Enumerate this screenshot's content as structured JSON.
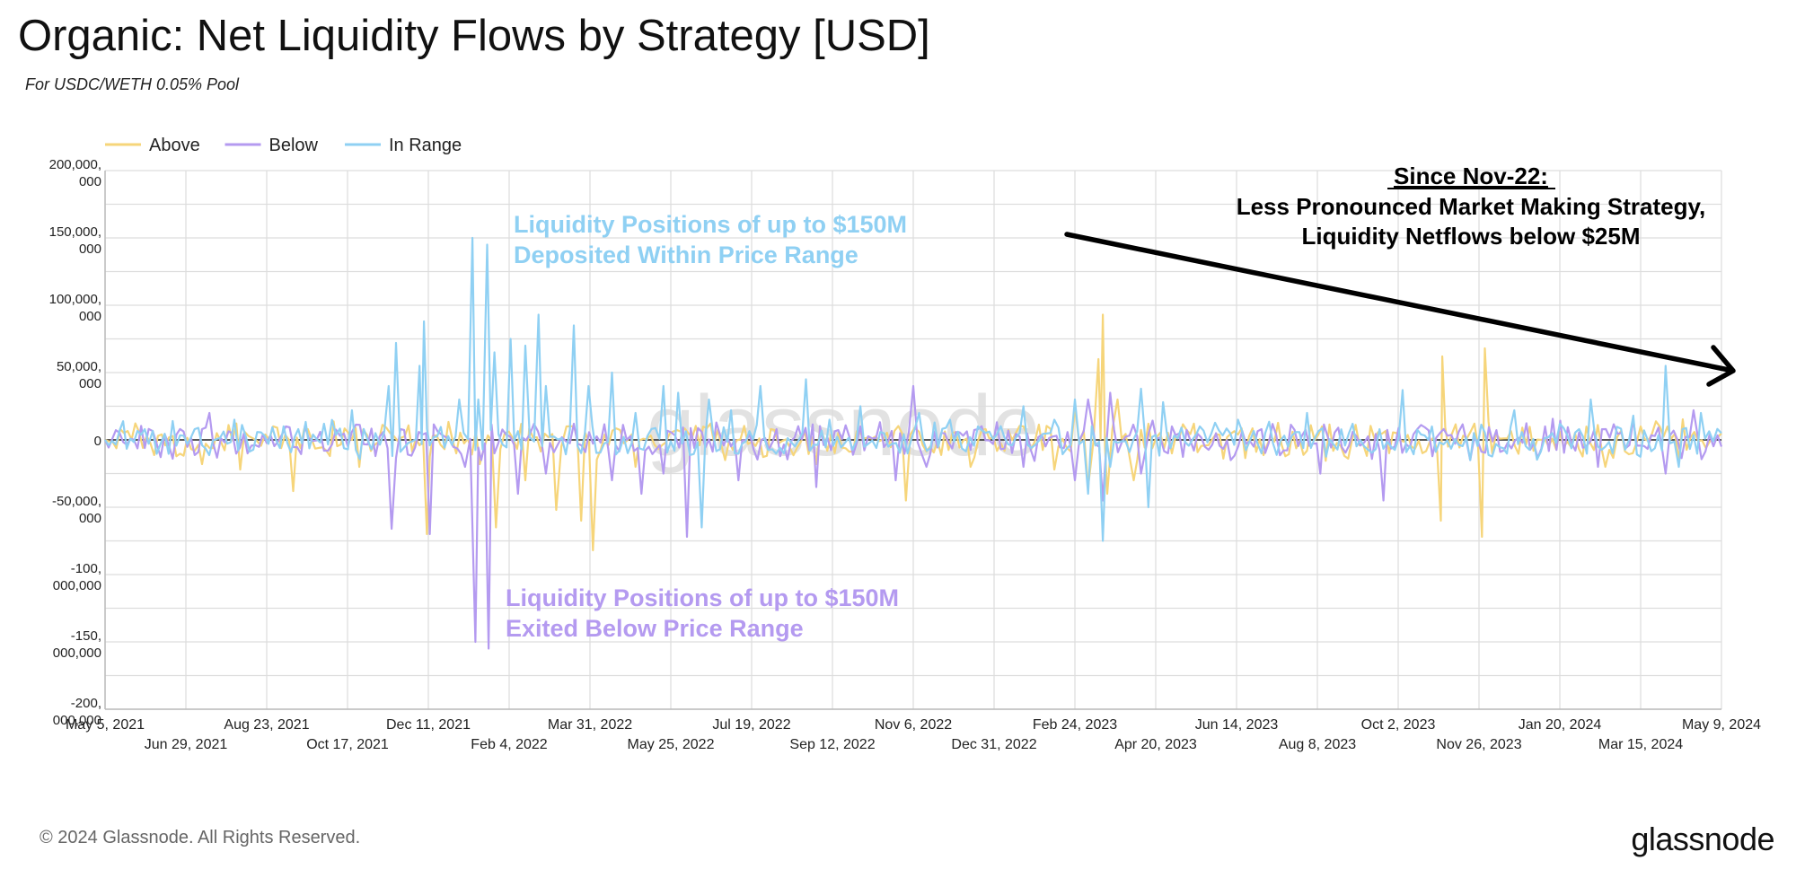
{
  "title": "Organic: Net Liquidity Flows by Strategy [USD]",
  "subtitle": "For USDC/WETH 0.05% Pool",
  "footer": "© 2024 Glassnode. All Rights Reserved.",
  "brand": "glassnode",
  "watermark": "glassnode",
  "colors": {
    "above": "#f6d57a",
    "below": "#b49af0",
    "in_range": "#8fd0f3",
    "arrow": "#000000"
  },
  "annotations": {
    "in_range_note": [
      "Liquidity Positions of up to $150M",
      "Deposited Within Price Range"
    ],
    "below_note": [
      "Liquidity Positions of up to $150M",
      "Exited Below Price Range"
    ],
    "since_heading": "Since Nov-22:",
    "since_lines": [
      "Less Pronounced Market Making Strategy,",
      "Liquidity Netflows below $25M"
    ]
  },
  "chart_data": {
    "type": "line",
    "title": "Organic: Net Liquidity Flows by Strategy [USD]",
    "subtitle": "For USDC/WETH 0.05% Pool",
    "legend_position": "top-left",
    "grid": true,
    "ylim": [
      -200000000,
      200000000
    ],
    "yticks": [
      {
        "value": 200000000,
        "label": [
          "200,000,",
          "000"
        ]
      },
      {
        "value": 150000000,
        "label": [
          "150,000,",
          "000"
        ]
      },
      {
        "value": 100000000,
        "label": [
          "100,000,",
          "000"
        ]
      },
      {
        "value": 50000000,
        "label": [
          "50,000,",
          "000"
        ]
      },
      {
        "value": 0,
        "label": [
          "0"
        ]
      },
      {
        "value": -50000000,
        "label": [
          "-50,000,",
          "000"
        ]
      },
      {
        "value": -100000000,
        "label": [
          "-100,",
          "000,000"
        ]
      },
      {
        "value": -150000000,
        "label": [
          "-150,",
          "000,000"
        ]
      },
      {
        "value": -200000000,
        "label": [
          "-200,",
          "000,000"
        ]
      }
    ],
    "xlim": [
      "2021-05-05",
      "2024-05-09"
    ],
    "xticks": [
      {
        "date": "2021-05-05",
        "label": "May 5, 2021",
        "row": 0
      },
      {
        "date": "2021-06-29",
        "label": "Jun 29, 2021",
        "row": 1
      },
      {
        "date": "2021-08-23",
        "label": "Aug 23, 2021",
        "row": 0
      },
      {
        "date": "2021-10-17",
        "label": "Oct 17, 2021",
        "row": 1
      },
      {
        "date": "2021-12-11",
        "label": "Dec 11, 2021",
        "row": 0
      },
      {
        "date": "2022-02-04",
        "label": "Feb 4, 2022",
        "row": 1
      },
      {
        "date": "2022-03-31",
        "label": "Mar 31, 2022",
        "row": 0
      },
      {
        "date": "2022-05-25",
        "label": "May 25, 2022",
        "row": 1
      },
      {
        "date": "2022-07-19",
        "label": "Jul 19, 2022",
        "row": 0
      },
      {
        "date": "2022-09-12",
        "label": "Sep 12, 2022",
        "row": 1
      },
      {
        "date": "2022-11-06",
        "label": "Nov 6, 2022",
        "row": 0
      },
      {
        "date": "2022-12-31",
        "label": "Dec 31, 2022",
        "row": 1
      },
      {
        "date": "2023-02-24",
        "label": "Feb 24, 2023",
        "row": 0
      },
      {
        "date": "2023-04-20",
        "label": "Apr 20, 2023",
        "row": 1
      },
      {
        "date": "2023-06-14",
        "label": "Jun 14, 2023",
        "row": 0
      },
      {
        "date": "2023-08-08",
        "label": "Aug 8, 2023",
        "row": 1
      },
      {
        "date": "2023-10-02",
        "label": "Oct 2, 2023",
        "row": 0
      },
      {
        "date": "2023-11-26",
        "label": "Nov 26, 2023",
        "row": 1
      },
      {
        "date": "2024-01-20",
        "label": "Jan 20, 2024",
        "row": 0
      },
      {
        "date": "2024-03-15",
        "label": "Mar 15, 2024",
        "row": 1
      },
      {
        "date": "2024-05-09",
        "label": "May 9, 2024",
        "row": 0
      }
    ],
    "series": [
      {
        "name": "Above",
        "color": "#f6d57a",
        "points": [
          [
            "2021-05-05",
            0
          ],
          [
            "2021-06-10",
            3000000
          ],
          [
            "2021-07-10",
            -18000000
          ],
          [
            "2021-07-20",
            5000000
          ],
          [
            "2021-08-05",
            -22000000
          ],
          [
            "2021-08-22",
            4000000
          ],
          [
            "2021-09-10",
            -38000000
          ],
          [
            "2021-09-20",
            8000000
          ],
          [
            "2021-10-05",
            -12000000
          ],
          [
            "2021-10-25",
            -20000000
          ],
          [
            "2021-11-15",
            5000000
          ],
          [
            "2021-12-05",
            -4000000
          ],
          [
            "2021-12-10",
            -70000000
          ],
          [
            "2021-12-14",
            3000000
          ],
          [
            "2021-12-30",
            -10000000
          ],
          [
            "2022-01-15",
            -18000000
          ],
          [
            "2022-01-26",
            -65000000
          ],
          [
            "2022-02-01",
            5000000
          ],
          [
            "2022-02-15",
            -30000000
          ],
          [
            "2022-03-08",
            -52000000
          ],
          [
            "2022-03-15",
            10000000
          ],
          [
            "2022-03-25",
            -60000000
          ],
          [
            "2022-04-02",
            -82000000
          ],
          [
            "2022-04-10",
            4000000
          ],
          [
            "2022-05-01",
            -20000000
          ],
          [
            "2022-06-01",
            6000000
          ],
          [
            "2022-07-01",
            -15000000
          ],
          [
            "2022-08-01",
            8000000
          ],
          [
            "2022-09-01",
            -18000000
          ],
          [
            "2022-10-01",
            5000000
          ],
          [
            "2022-11-01",
            -45000000
          ],
          [
            "2022-11-10",
            6000000
          ],
          [
            "2022-12-15",
            -20000000
          ],
          [
            "2023-01-20",
            10000000
          ],
          [
            "2023-02-10",
            -22000000
          ],
          [
            "2023-02-24",
            25000000
          ],
          [
            "2023-03-05",
            -35000000
          ],
          [
            "2023-03-12",
            60000000
          ],
          [
            "2023-03-15",
            93000000
          ],
          [
            "2023-03-18",
            -40000000
          ],
          [
            "2023-03-25",
            30000000
          ],
          [
            "2023-04-05",
            -30000000
          ],
          [
            "2023-04-15",
            12000000
          ],
          [
            "2023-05-01",
            -10000000
          ],
          [
            "2023-06-15",
            4000000
          ],
          [
            "2023-08-01",
            -8000000
          ],
          [
            "2023-10-01",
            5000000
          ],
          [
            "2023-10-31",
            -60000000
          ],
          [
            "2023-11-01",
            62000000
          ],
          [
            "2023-11-05",
            -5000000
          ],
          [
            "2023-11-28",
            -72000000
          ],
          [
            "2023-11-30",
            68000000
          ],
          [
            "2023-12-05",
            -10000000
          ],
          [
            "2024-01-20",
            6000000
          ],
          [
            "2024-02-20",
            -20000000
          ],
          [
            "2024-03-15",
            10000000
          ],
          [
            "2024-04-10",
            -15000000
          ],
          [
            "2024-05-09",
            5000000
          ]
        ]
      },
      {
        "name": "Below",
        "color": "#b49af0",
        "points": [
          [
            "2021-05-05",
            0
          ],
          [
            "2021-06-01",
            -6000000
          ],
          [
            "2021-06-20",
            -14000000
          ],
          [
            "2021-07-15",
            20000000
          ],
          [
            "2021-08-10",
            -10000000
          ],
          [
            "2021-09-05",
            10000000
          ],
          [
            "2021-10-01",
            -8000000
          ],
          [
            "2021-10-20",
            6000000
          ],
          [
            "2021-11-05",
            -12000000
          ],
          [
            "2021-11-16",
            -66000000
          ],
          [
            "2021-11-22",
            8000000
          ],
          [
            "2021-12-12",
            -70000000
          ],
          [
            "2021-12-20",
            4000000
          ],
          [
            "2022-01-05",
            -20000000
          ],
          [
            "2022-01-12",
            -150000000
          ],
          [
            "2022-01-16",
            -15000000
          ],
          [
            "2022-01-21",
            -155000000
          ],
          [
            "2022-01-25",
            -10000000
          ],
          [
            "2022-02-10",
            -40000000
          ],
          [
            "2022-03-01",
            -25000000
          ],
          [
            "2022-03-20",
            12000000
          ],
          [
            "2022-04-15",
            -30000000
          ],
          [
            "2022-05-05",
            -40000000
          ],
          [
            "2022-05-20",
            -25000000
          ],
          [
            "2022-06-05",
            -72000000
          ],
          [
            "2022-06-15",
            6000000
          ],
          [
            "2022-07-10",
            -30000000
          ],
          [
            "2022-08-05",
            8000000
          ],
          [
            "2022-09-01",
            -35000000
          ],
          [
            "2022-10-01",
            10000000
          ],
          [
            "2022-10-25",
            -30000000
          ],
          [
            "2022-11-06",
            40000000
          ],
          [
            "2022-11-15",
            -20000000
          ],
          [
            "2022-12-20",
            8000000
          ],
          [
            "2023-01-20",
            -20000000
          ],
          [
            "2023-02-24",
            -30000000
          ],
          [
            "2023-03-05",
            30000000
          ],
          [
            "2023-03-15",
            -45000000
          ],
          [
            "2023-03-20",
            35000000
          ],
          [
            "2023-04-10",
            -25000000
          ],
          [
            "2023-05-01",
            10000000
          ],
          [
            "2023-06-10",
            -15000000
          ],
          [
            "2023-07-01",
            8000000
          ],
          [
            "2023-08-10",
            -25000000
          ],
          [
            "2023-09-01",
            6000000
          ],
          [
            "2023-09-22",
            -45000000
          ],
          [
            "2023-10-15",
            8000000
          ],
          [
            "2023-11-20",
            -15000000
          ],
          [
            "2024-01-10",
            10000000
          ],
          [
            "2024-02-15",
            -20000000
          ],
          [
            "2024-03-10",
            15000000
          ],
          [
            "2024-04-01",
            -25000000
          ],
          [
            "2024-04-20",
            22000000
          ],
          [
            "2024-05-09",
            -5000000
          ]
        ]
      },
      {
        "name": "In Range",
        "color": "#8fd0f3",
        "points": [
          [
            "2021-05-05",
            0
          ],
          [
            "2021-06-01",
            8000000
          ],
          [
            "2021-06-20",
            14000000
          ],
          [
            "2021-07-10",
            -4000000
          ],
          [
            "2021-08-01",
            15000000
          ],
          [
            "2021-09-01",
            -6000000
          ],
          [
            "2021-10-01",
            12000000
          ],
          [
            "2021-10-20",
            22000000
          ],
          [
            "2021-11-05",
            5000000
          ],
          [
            "2021-11-14",
            40000000
          ],
          [
            "2021-11-19",
            72000000
          ],
          [
            "2021-11-25",
            -5000000
          ],
          [
            "2021-12-05",
            55000000
          ],
          [
            "2021-12-08",
            88000000
          ],
          [
            "2021-12-12",
            -4000000
          ],
          [
            "2022-01-01",
            30000000
          ],
          [
            "2022-01-10",
            150000000
          ],
          [
            "2022-01-14",
            30000000
          ],
          [
            "2022-01-20",
            145000000
          ],
          [
            "2022-01-25",
            65000000
          ],
          [
            "2022-02-05",
            75000000
          ],
          [
            "2022-02-15",
            70000000
          ],
          [
            "2022-02-24",
            93000000
          ],
          [
            "2022-03-01",
            40000000
          ],
          [
            "2022-03-20",
            85000000
          ],
          [
            "2022-03-30",
            40000000
          ],
          [
            "2022-04-15",
            50000000
          ],
          [
            "2022-05-01",
            20000000
          ],
          [
            "2022-05-20",
            40000000
          ],
          [
            "2022-05-30",
            35000000
          ],
          [
            "2022-06-15",
            -65000000
          ],
          [
            "2022-06-20",
            30000000
          ],
          [
            "2022-07-05",
            22000000
          ],
          [
            "2022-07-25",
            40000000
          ],
          [
            "2022-08-10",
            -10000000
          ],
          [
            "2022-08-25",
            45000000
          ],
          [
            "2022-09-10",
            15000000
          ],
          [
            "2022-10-01",
            25000000
          ],
          [
            "2022-10-20",
            -5000000
          ],
          [
            "2022-11-10",
            20000000
          ],
          [
            "2022-12-01",
            15000000
          ],
          [
            "2022-12-20",
            10000000
          ],
          [
            "2023-01-20",
            25000000
          ],
          [
            "2023-02-10",
            15000000
          ],
          [
            "2023-02-24",
            30000000
          ],
          [
            "2023-03-05",
            -40000000
          ],
          [
            "2023-03-15",
            -75000000
          ],
          [
            "2023-03-20",
            -20000000
          ],
          [
            "2023-04-10",
            38000000
          ],
          [
            "2023-04-15",
            -50000000
          ],
          [
            "2023-04-25",
            28000000
          ],
          [
            "2023-05-20",
            10000000
          ],
          [
            "2023-06-15",
            15000000
          ],
          [
            "2023-07-01",
            -10000000
          ],
          [
            "2023-08-01",
            20000000
          ],
          [
            "2023-09-01",
            12000000
          ],
          [
            "2023-10-05",
            37000000
          ],
          [
            "2023-10-25",
            10000000
          ],
          [
            "2023-11-20",
            -15000000
          ],
          [
            "2023-12-20",
            22000000
          ],
          [
            "2024-01-20",
            12000000
          ],
          [
            "2024-02-10",
            30000000
          ],
          [
            "2024-02-25",
            -10000000
          ],
          [
            "2024-03-10",
            18000000
          ],
          [
            "2024-04-01",
            55000000
          ],
          [
            "2024-04-10",
            -20000000
          ],
          [
            "2024-04-25",
            20000000
          ],
          [
            "2024-05-09",
            5000000
          ]
        ]
      }
    ]
  }
}
